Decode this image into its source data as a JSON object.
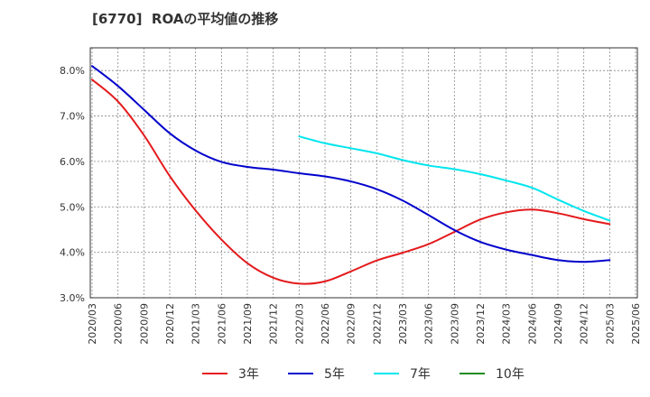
{
  "chart_data": {
    "type": "line",
    "title": "[6770]  ROAの平均値の推移",
    "xlabel": "",
    "ylabel": "",
    "ylim": [
      3.0,
      8.5
    ],
    "grid": true,
    "legend_placement": "bottom",
    "x": [
      "2020/03",
      "2020/06",
      "2020/09",
      "2020/12",
      "2021/03",
      "2021/06",
      "2021/09",
      "2021/12",
      "2022/03",
      "2022/06",
      "2022/09",
      "2022/12",
      "2023/03",
      "2023/06",
      "2023/09",
      "2023/12",
      "2024/03",
      "2024/06",
      "2024/09",
      "2024/12",
      "2025/03",
      "2025/06"
    ],
    "y_ticks": [
      "3.0%",
      "4.0%",
      "5.0%",
      "6.0%",
      "7.0%",
      "8.0%"
    ],
    "y_tick_values": [
      3.0,
      4.0,
      5.0,
      6.0,
      7.0,
      8.0
    ],
    "series": [
      {
        "name": "3年",
        "color": "#e41a1c",
        "values": [
          7.8,
          7.32,
          6.58,
          5.68,
          4.92,
          4.28,
          3.76,
          3.44,
          3.31,
          3.36,
          3.58,
          3.82,
          3.99,
          4.18,
          4.45,
          4.72,
          4.88,
          4.94,
          4.86,
          4.73,
          4.62,
          null
        ]
      },
      {
        "name": "5年",
        "color": "#0000cc",
        "values": [
          8.1,
          7.66,
          7.14,
          6.62,
          6.24,
          5.99,
          5.88,
          5.82,
          5.74,
          5.67,
          5.56,
          5.39,
          5.14,
          4.82,
          4.49,
          4.23,
          4.06,
          3.94,
          3.83,
          3.79,
          3.83,
          null
        ]
      },
      {
        "name": "7年",
        "color": "#00e5ee",
        "values": [
          null,
          null,
          null,
          null,
          null,
          null,
          null,
          null,
          6.55,
          6.4,
          6.29,
          6.18,
          6.03,
          5.91,
          5.83,
          5.72,
          5.58,
          5.42,
          5.16,
          4.91,
          4.7,
          null
        ]
      },
      {
        "name": "10年",
        "color": "#228b22",
        "values": [
          null,
          null,
          null,
          null,
          null,
          null,
          null,
          null,
          null,
          null,
          null,
          null,
          null,
          null,
          null,
          null,
          null,
          null,
          null,
          null,
          null,
          null
        ]
      }
    ]
  }
}
